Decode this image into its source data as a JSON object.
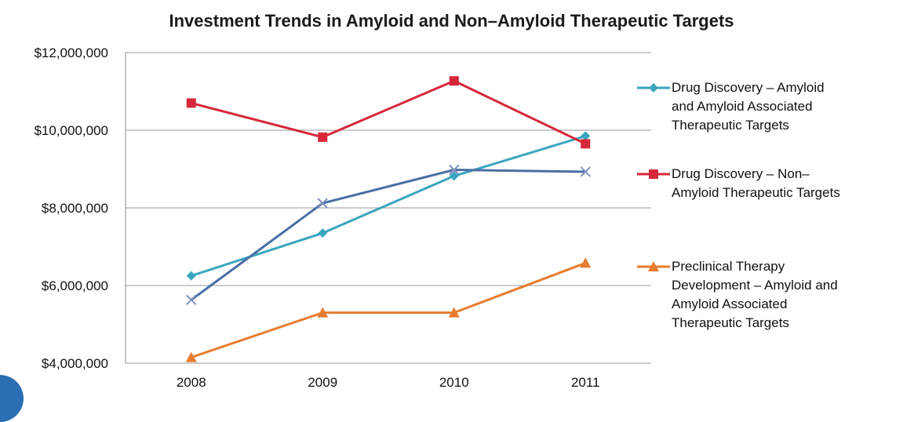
{
  "chart_data": {
    "type": "line",
    "title": "Investment Trends in Amyloid and Non–Amyloid Therapeutic Targets",
    "xlabel": "",
    "ylabel": "",
    "categories": [
      "2008",
      "2009",
      "2010",
      "2011"
    ],
    "ylim": [
      4000000,
      12000000
    ],
    "yticks": [
      4000000,
      6000000,
      8000000,
      10000000,
      12000000
    ],
    "ytick_labels": [
      "$4,000,000",
      "$6,000,000",
      "$8,000,000",
      "$10,000,000",
      "$12,000,000"
    ],
    "grid": true,
    "legend_position": "right",
    "series": [
      {
        "name": "Drug Discovery – Amyloid and Amyloid Associated Therapeutic Targets",
        "color": "#3aa6bf",
        "marker": "diamond",
        "values": [
          6250000,
          7350000,
          8820000,
          9850000
        ]
      },
      {
        "name": "Drug Discovery – Non–Amyloid Therapeutic Targets",
        "color": "#d6283a",
        "marker": "square",
        "values": [
          10700000,
          9820000,
          11270000,
          9650000
        ]
      },
      {
        "name": "Preclinical Therapy Development – Amyloid and Amyloid Associated Therapeutic Targets",
        "color": "#e67c2f",
        "marker": "triangle",
        "values": [
          4150000,
          5300000,
          5300000,
          6580000
        ]
      },
      {
        "name": "",
        "color": "#4a6fa5",
        "marker": "x",
        "values": [
          5630000,
          8120000,
          8980000,
          8930000
        ]
      }
    ]
  },
  "legend": [
    {
      "lines": [
        "Drug Discovery – Amyloid",
        "and Amyloid Associated",
        "Therapeutic Targets"
      ],
      "series_index": 0
    },
    {
      "lines": [
        "Drug Discovery – Non–",
        "Amyloid Therapeutic Targets"
      ],
      "series_index": 1
    },
    {
      "lines": [
        "Preclinical Therapy",
        "Development – Amyloid and",
        "Amyloid Associated",
        "Therapeutic Targets"
      ],
      "series_index": 2
    }
  ]
}
